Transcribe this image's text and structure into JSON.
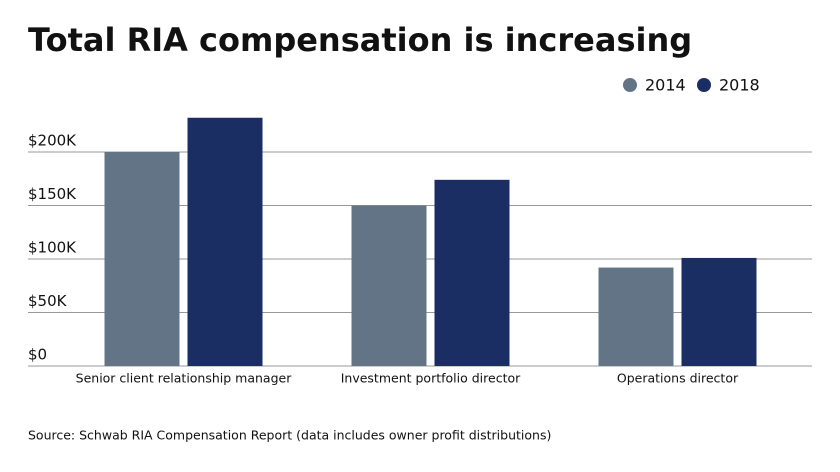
{
  "chart_data": {
    "type": "bar",
    "title": "Total RIA compensation is increasing",
    "source": "Source: Schwab RIA Compensation Report (data includes owner profit distributions)",
    "categories": [
      "Senior client relationship manager",
      "Investment portfolio director",
      "Operations director"
    ],
    "series": [
      {
        "name": "2014",
        "color": "#647487",
        "values": [
          200000,
          150000,
          92000
        ]
      },
      {
        "name": "2018",
        "color": "#1a2e63",
        "values": [
          232000,
          174000,
          101000
        ]
      }
    ],
    "ylim": [
      0,
      250000
    ],
    "yticks": [
      {
        "value": 0,
        "label": "$0"
      },
      {
        "value": 50000,
        "label": "$50K"
      },
      {
        "value": 100000,
        "label": "$100K"
      },
      {
        "value": 150000,
        "label": "$150K"
      },
      {
        "value": 200000,
        "label": "$200K"
      }
    ],
    "grid": true,
    "legend": "top-right"
  }
}
